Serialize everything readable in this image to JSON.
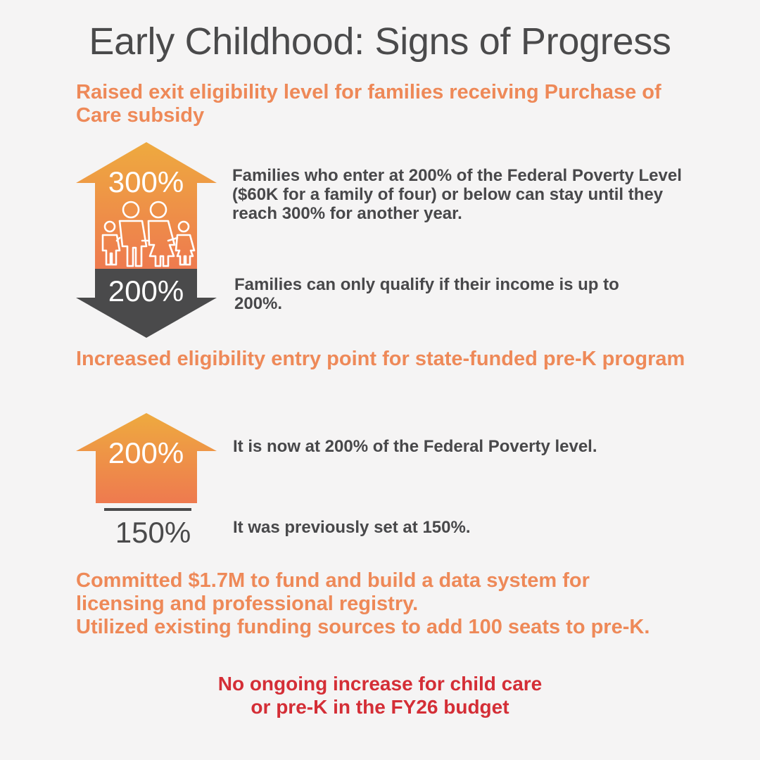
{
  "title": "Early Childhood: Signs of Progress",
  "section1": {
    "heading": "Raised exit eligibility level for families receiving Purchase of Care subsidy",
    "up_value": "300%",
    "down_value": "200%",
    "up_text": "Families who enter at 200% of the Federal Poverty Level ($60K for a family of four) or below can stay until they reach 300% for another year.",
    "down_text": "Families can only qualify if their income is up to 200%.",
    "icon": "family-icon"
  },
  "section2": {
    "heading": "Increased eligibility entry point for state-funded pre-K program",
    "up_value": "200%",
    "base_value": "150%",
    "up_text": "It is now at 200% of the Federal Poverty level.",
    "base_text": "It was previously set at 150%."
  },
  "section3": {
    "line1": "Committed $1.7M to fund and build a data system for",
    "line2": "licensing and professional registry.",
    "line3": "Utilized existing funding sources to add 100 seats to pre-K."
  },
  "note": {
    "line1": "No ongoing increase for child care",
    "line2": "or pre-K in the FY26 budget"
  },
  "colors": {
    "orange_top": "#eeaa3f",
    "orange_bottom": "#ee7a4f",
    "heading": "#ee8958",
    "dark_arrow": "#4a4a4b",
    "note": "#d42e36"
  }
}
